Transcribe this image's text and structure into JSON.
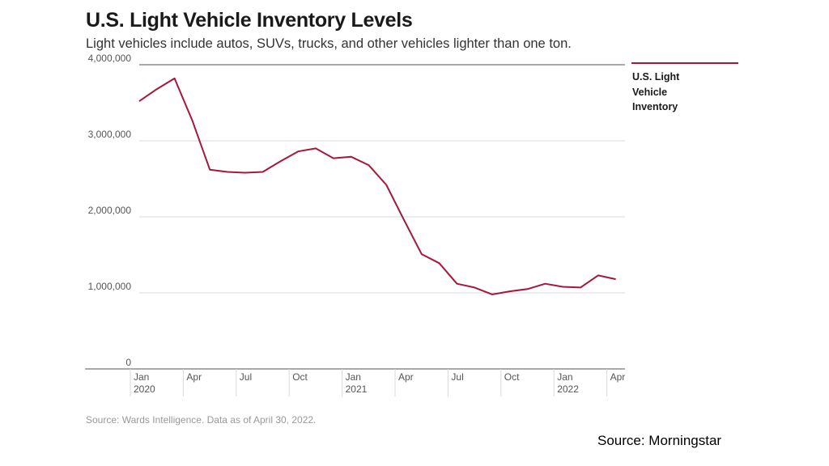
{
  "header": {
    "title": "U.S. Light Vehicle Inventory Levels",
    "subtitle": "Light vehicles include autos, SUVs, trucks, and other vehicles lighter than one ton."
  },
  "legend": {
    "label": "U.S. Light Vehicle Inventory"
  },
  "footer": {
    "note": "Source: Wards Intelligence. Data as of April 30, 2022.",
    "source": "Source: Morningstar"
  },
  "colors": {
    "series": "#a6183a",
    "grid": "#d9d9d9",
    "axis": "#555555"
  },
  "chart_data": {
    "type": "line",
    "title": "U.S. Light Vehicle Inventory Levels",
    "subtitle": "Light vehicles include autos, SUVs, trucks, and other vehicles lighter than one ton.",
    "xlabel": "",
    "ylabel": "",
    "ylim": [
      0,
      4000000
    ],
    "yticks": [
      {
        "value": 0,
        "label": "0"
      },
      {
        "value": 1000000,
        "label": "1,000,000"
      },
      {
        "value": 2000000,
        "label": "2,000,000"
      },
      {
        "value": 3000000,
        "label": "3,000,000"
      },
      {
        "value": 4000000,
        "label": "4,000,000"
      }
    ],
    "xticks": [
      {
        "x": "2020-01",
        "month": "Jan",
        "year": "2020"
      },
      {
        "x": "2020-04",
        "month": "Apr",
        "year": ""
      },
      {
        "x": "2020-07",
        "month": "Jul",
        "year": ""
      },
      {
        "x": "2020-10",
        "month": "Oct",
        "year": ""
      },
      {
        "x": "2021-01",
        "month": "Jan",
        "year": "2021"
      },
      {
        "x": "2021-04",
        "month": "Apr",
        "year": ""
      },
      {
        "x": "2021-07",
        "month": "Jul",
        "year": ""
      },
      {
        "x": "2021-10",
        "month": "Oct",
        "year": ""
      },
      {
        "x": "2022-01",
        "month": "Jan",
        "year": "2022"
      },
      {
        "x": "2022-04",
        "month": "Apr",
        "year": ""
      }
    ],
    "grid": true,
    "legend_position": "top-right",
    "series": [
      {
        "name": "U.S. Light Vehicle Inventory",
        "color": "#a6183a",
        "x": [
          "2020-01",
          "2020-02",
          "2020-03",
          "2020-04",
          "2020-05",
          "2020-06",
          "2020-07",
          "2020-08",
          "2020-09",
          "2020-10",
          "2020-11",
          "2020-12",
          "2021-01",
          "2021-02",
          "2021-03",
          "2021-04",
          "2021-05",
          "2021-06",
          "2021-07",
          "2021-08",
          "2021-09",
          "2021-10",
          "2021-11",
          "2021-12",
          "2022-01",
          "2022-02",
          "2022-03",
          "2022-04"
        ],
        "values": [
          3520000,
          3680000,
          3820000,
          3270000,
          2620000,
          2590000,
          2580000,
          2590000,
          2730000,
          2860000,
          2900000,
          2770000,
          2790000,
          2680000,
          2420000,
          1960000,
          1510000,
          1390000,
          1120000,
          1070000,
          980000,
          1020000,
          1050000,
          1120000,
          1080000,
          1070000,
          1230000,
          1180000
        ]
      }
    ]
  }
}
